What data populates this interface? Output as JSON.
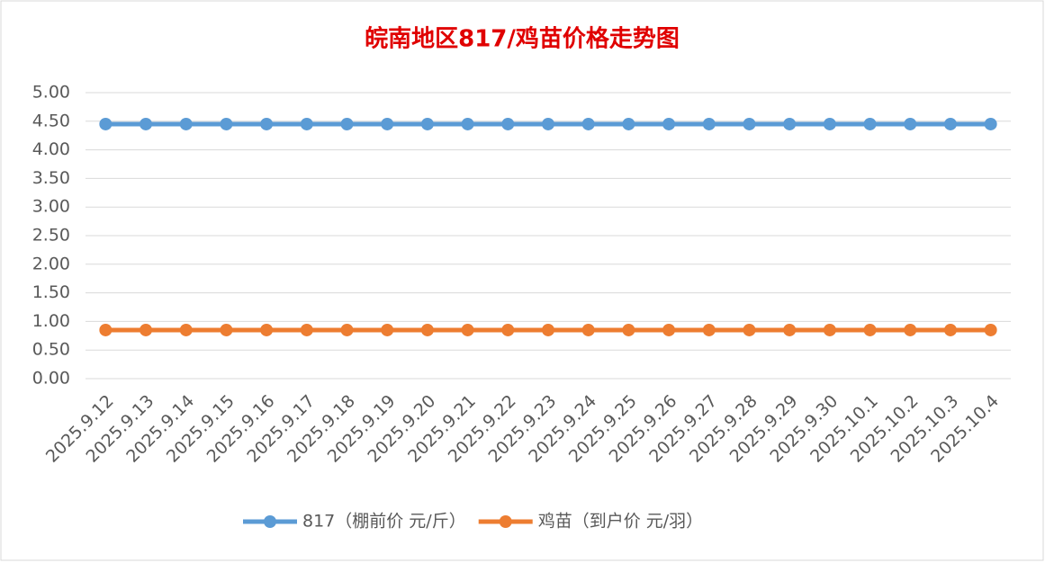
{
  "chart_data": {
    "type": "line",
    "title": "皖南地区817/鸡苗价格走势图",
    "categories": [
      "2025.9.12",
      "2025.9.13",
      "2025.9.14",
      "2025.9.15",
      "2025.9.16",
      "2025.9.17",
      "2025.9.18",
      "2025.9.19",
      "2025.9.20",
      "2025.9.21",
      "2025.9.22",
      "2025.9.23",
      "2025.9.24",
      "2025.9.25",
      "2025.9.26",
      "2025.9.27",
      "2025.9.28",
      "2025.9.29",
      "2025.9.30",
      "2025.10.1",
      "2025.10.2",
      "2025.10.3",
      "2025.10.4"
    ],
    "series": [
      {
        "name": "817（棚前价 元/斤）",
        "color": "#5b9bd5",
        "values": [
          4.45,
          4.45,
          4.45,
          4.45,
          4.45,
          4.45,
          4.45,
          4.45,
          4.45,
          4.45,
          4.45,
          4.45,
          4.45,
          4.45,
          4.45,
          4.45,
          4.45,
          4.45,
          4.45,
          4.45,
          4.45,
          4.45,
          4.45
        ]
      },
      {
        "name": "鸡苗（到户价 元/羽）",
        "color": "#ed7d31",
        "values": [
          0.85,
          0.85,
          0.85,
          0.85,
          0.85,
          0.85,
          0.85,
          0.85,
          0.85,
          0.85,
          0.85,
          0.85,
          0.85,
          0.85,
          0.85,
          0.85,
          0.85,
          0.85,
          0.85,
          0.85,
          0.85,
          0.85,
          0.85
        ]
      }
    ],
    "ylim": [
      0,
      5
    ],
    "yticks": [
      {
        "value": 0,
        "label": "0.00"
      },
      {
        "value": 0.5,
        "label": "0.50"
      },
      {
        "value": 1,
        "label": "1.00"
      },
      {
        "value": 1.5,
        "label": "1.50"
      },
      {
        "value": 2,
        "label": "2.00"
      },
      {
        "value": 2.5,
        "label": "2.50"
      },
      {
        "value": 3,
        "label": "3.00"
      },
      {
        "value": 3.5,
        "label": "3.50"
      },
      {
        "value": 4,
        "label": "4.00"
      },
      {
        "value": 4.5,
        "label": "4.50"
      },
      {
        "value": 5,
        "label": "5.00"
      }
    ],
    "grid": true,
    "legend": "bottom"
  }
}
